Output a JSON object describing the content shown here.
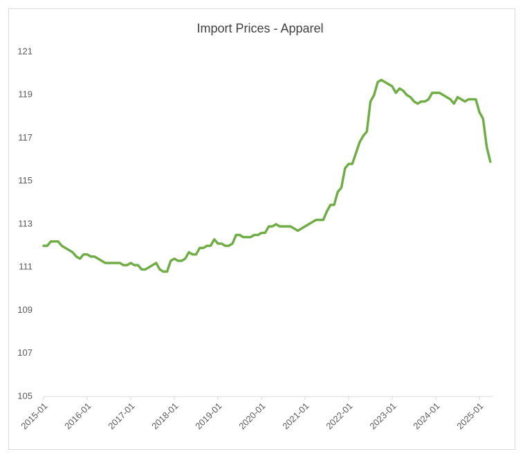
{
  "chart_data": {
    "type": "line",
    "title": "Import Prices - Apparel",
    "categories": [
      "2015-01",
      null,
      null,
      null,
      null,
      null,
      null,
      null,
      null,
      null,
      null,
      null,
      "2016-01",
      null,
      null,
      null,
      null,
      null,
      null,
      null,
      null,
      null,
      null,
      null,
      "2017-01",
      null,
      null,
      null,
      null,
      null,
      null,
      null,
      null,
      null,
      null,
      null,
      "2018-01",
      null,
      null,
      null,
      null,
      null,
      null,
      null,
      null,
      null,
      null,
      null,
      "2019-01",
      null,
      null,
      null,
      null,
      null,
      null,
      null,
      null,
      null,
      null,
      null,
      "2020-01",
      null,
      null,
      null,
      null,
      null,
      null,
      null,
      null,
      null,
      null,
      null,
      "2021-01",
      null,
      null,
      null,
      null,
      null,
      null,
      null,
      null,
      null,
      null,
      null,
      "2022-01",
      null,
      null,
      null,
      null,
      null,
      null,
      null,
      null,
      null,
      null,
      null,
      "2023-01",
      null,
      null,
      null,
      null,
      null,
      null,
      null,
      null,
      null,
      null,
      null,
      "2024-01",
      null,
      null,
      null,
      null,
      null,
      null,
      null,
      null,
      null,
      null,
      null,
      "2025-01",
      null,
      null,
      null
    ],
    "values": [
      112.0,
      112.0,
      112.2,
      112.2,
      112.2,
      112.0,
      111.9,
      111.8,
      111.7,
      111.5,
      111.4,
      111.6,
      111.6,
      111.5,
      111.5,
      111.4,
      111.3,
      111.2,
      111.2,
      111.2,
      111.2,
      111.2,
      111.1,
      111.1,
      111.2,
      111.1,
      111.1,
      110.9,
      110.9,
      111.0,
      111.1,
      111.2,
      110.9,
      110.8,
      110.8,
      111.3,
      111.4,
      111.3,
      111.3,
      111.4,
      111.7,
      111.6,
      111.6,
      111.9,
      111.9,
      112.0,
      112.0,
      112.3,
      112.1,
      112.1,
      112.0,
      112.0,
      112.1,
      112.5,
      112.5,
      112.4,
      112.4,
      112.4,
      112.5,
      112.5,
      112.6,
      112.6,
      112.9,
      112.9,
      113.0,
      112.9,
      112.9,
      112.9,
      112.9,
      112.8,
      112.7,
      112.8,
      112.9,
      113.0,
      113.1,
      113.2,
      113.2,
      113.2,
      113.6,
      113.9,
      113.9,
      114.5,
      114.7,
      115.6,
      115.8,
      115.8,
      116.3,
      116.8,
      117.1,
      117.3,
      118.7,
      119.0,
      119.6,
      119.7,
      119.6,
      119.5,
      119.4,
      119.1,
      119.3,
      119.2,
      119.0,
      118.9,
      118.7,
      118.6,
      118.7,
      118.7,
      118.8,
      119.1,
      119.1,
      119.1,
      119.0,
      118.9,
      118.8,
      118.6,
      118.9,
      118.8,
      118.7,
      118.8,
      118.8,
      118.8,
      118.2,
      117.9,
      116.6,
      115.9
    ],
    "color": "#70ad47",
    "ylim": [
      105,
      121
    ],
    "yticks": [
      105,
      107,
      109,
      111,
      113,
      115,
      117,
      119,
      121
    ]
  }
}
